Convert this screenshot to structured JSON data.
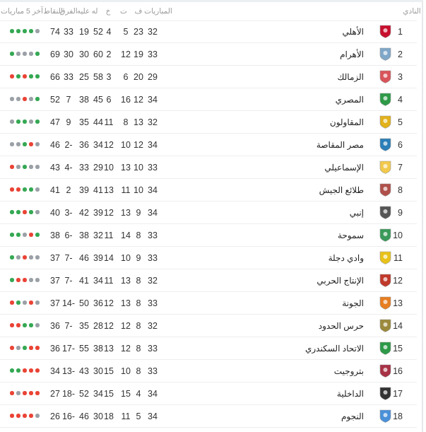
{
  "header": {
    "club": "النادي",
    "played": "المباريات",
    "won": "ف",
    "drawn": "ت",
    "lost": "خ",
    "goals_for": "له",
    "goals_against": "عليه",
    "goal_diff": "الفرق",
    "points": "النقاط",
    "last5": "آخر 5 مباريات"
  },
  "colors": {
    "win": "#34a853",
    "loss": "#ea4335",
    "draw": "#9aa0a6"
  },
  "form_order": "left-to-right as displayed",
  "rows": [
    {
      "pos": "1",
      "name": "الأهلي",
      "played": "32",
      "won": "23",
      "drawn": "5",
      "lost": "4",
      "gf": "52",
      "ga": "19",
      "gd": "33",
      "pts": "74",
      "form": [
        "W",
        "W",
        "W",
        "W",
        "D"
      ],
      "logo": "#c8102e"
    },
    {
      "pos": "2",
      "name": "الأهرام",
      "played": "33",
      "won": "19",
      "drawn": "12",
      "lost": "2",
      "gf": "60",
      "ga": "30",
      "gd": "30",
      "pts": "69",
      "form": [
        "W",
        "D",
        "D",
        "D",
        "W"
      ],
      "logo": "#7fa7c9"
    },
    {
      "pos": "3",
      "name": "الزمالك",
      "played": "29",
      "won": "20",
      "drawn": "6",
      "lost": "3",
      "gf": "58",
      "ga": "25",
      "gd": "33",
      "pts": "66",
      "form": [
        "L",
        "W",
        "L",
        "W",
        "W"
      ],
      "logo": "#d9545a"
    },
    {
      "pos": "4",
      "name": "المصري",
      "played": "34",
      "won": "12",
      "drawn": "16",
      "lost": "6",
      "gf": "45",
      "ga": "38",
      "gd": "7",
      "pts": "52",
      "form": [
        "D",
        "D",
        "L",
        "D",
        "W"
      ],
      "logo": "#2e9a48"
    },
    {
      "pos": "5",
      "name": "المقاولون",
      "played": "32",
      "won": "13",
      "drawn": "8",
      "lost": "11",
      "gf": "44",
      "ga": "35",
      "gd": "9",
      "pts": "47",
      "form": [
        "D",
        "W",
        "W",
        "D",
        "W"
      ],
      "logo": "#e2b21c"
    },
    {
      "pos": "6",
      "name": "مصر المقاصة",
      "played": "34",
      "won": "12",
      "drawn": "10",
      "lost": "12",
      "gf": "34",
      "ga": "36",
      "gd": "-2",
      "pts": "46",
      "form": [
        "D",
        "D",
        "W",
        "L",
        "D"
      ],
      "logo": "#2c7fb8"
    },
    {
      "pos": "7",
      "name": "الإسماعيلي",
      "played": "33",
      "won": "10",
      "drawn": "13",
      "lost": "10",
      "gf": "29",
      "ga": "33",
      "gd": "-4",
      "pts": "43",
      "form": [
        "L",
        "D",
        "W",
        "D",
        "D"
      ],
      "logo": "#f2c94c"
    },
    {
      "pos": "8",
      "name": "طلائع الجيش",
      "played": "34",
      "won": "10",
      "drawn": "11",
      "lost": "13",
      "gf": "41",
      "ga": "39",
      "gd": "2",
      "pts": "41",
      "form": [
        "L",
        "L",
        "W",
        "W",
        "D"
      ],
      "logo": "#b0504a"
    },
    {
      "pos": "9",
      "name": "إنبي",
      "played": "34",
      "won": "9",
      "drawn": "13",
      "lost": "12",
      "gf": "39",
      "ga": "42",
      "gd": "-3",
      "pts": "40",
      "form": [
        "W",
        "W",
        "L",
        "W",
        "D"
      ],
      "logo": "#555555"
    },
    {
      "pos": "10",
      "name": "سموحة",
      "played": "33",
      "won": "8",
      "drawn": "14",
      "lost": "11",
      "gf": "32",
      "ga": "38",
      "gd": "-6",
      "pts": "38",
      "form": [
        "W",
        "W",
        "D",
        "L",
        "W"
      ],
      "logo": "#3a9a5a"
    },
    {
      "pos": "11",
      "name": "وادي دجلة",
      "played": "33",
      "won": "9",
      "drawn": "10",
      "lost": "14",
      "gf": "39",
      "ga": "46",
      "gd": "-7",
      "pts": "37",
      "form": [
        "W",
        "D",
        "L",
        "D",
        "D"
      ],
      "logo": "#e8c21a"
    },
    {
      "pos": "12",
      "name": "الإنتاج الحربي",
      "played": "32",
      "won": "8",
      "drawn": "13",
      "lost": "11",
      "gf": "34",
      "ga": "41",
      "gd": "-7",
      "pts": "37",
      "form": [
        "W",
        "L",
        "L",
        "D",
        "D"
      ],
      "logo": "#c0392b"
    },
    {
      "pos": "13",
      "name": "الجونة",
      "played": "33",
      "won": "8",
      "drawn": "13",
      "lost": "12",
      "gf": "36",
      "ga": "50",
      "gd": "-14",
      "pts": "37",
      "form": [
        "L",
        "W",
        "D",
        "L",
        "D"
      ],
      "logo": "#e67e22"
    },
    {
      "pos": "14",
      "name": "حرس الحدود",
      "played": "32",
      "won": "8",
      "drawn": "12",
      "lost": "12",
      "gf": "28",
      "ga": "35",
      "gd": "-7",
      "pts": "36",
      "form": [
        "L",
        "L",
        "W",
        "W",
        "D"
      ],
      "logo": "#9c8a3c"
    },
    {
      "pos": "15",
      "name": "الاتحاد السكندري",
      "played": "33",
      "won": "8",
      "drawn": "12",
      "lost": "13",
      "gf": "38",
      "ga": "55",
      "gd": "-17",
      "pts": "36",
      "form": [
        "L",
        "D",
        "W",
        "L",
        "L"
      ],
      "logo": "#2e9a48"
    },
    {
      "pos": "16",
      "name": "بتروجيت",
      "played": "33",
      "won": "8",
      "drawn": "10",
      "lost": "15",
      "gf": "30",
      "ga": "43",
      "gd": "-13",
      "pts": "34",
      "form": [
        "W",
        "W",
        "L",
        "L",
        "L"
      ],
      "logo": "#a83245"
    },
    {
      "pos": "17",
      "name": "الداخلية",
      "played": "34",
      "won": "4",
      "drawn": "15",
      "lost": "15",
      "gf": "34",
      "ga": "52",
      "gd": "-18",
      "pts": "27",
      "form": [
        "L",
        "D",
        "L",
        "L",
        "L"
      ],
      "logo": "#333333"
    },
    {
      "pos": "18",
      "name": "النجوم",
      "played": "34",
      "won": "5",
      "drawn": "11",
      "lost": "18",
      "gf": "30",
      "ga": "46",
      "gd": "-16",
      "pts": "26",
      "form": [
        "L",
        "L",
        "L",
        "L",
        "D"
      ],
      "logo": "#4a90d9"
    }
  ]
}
